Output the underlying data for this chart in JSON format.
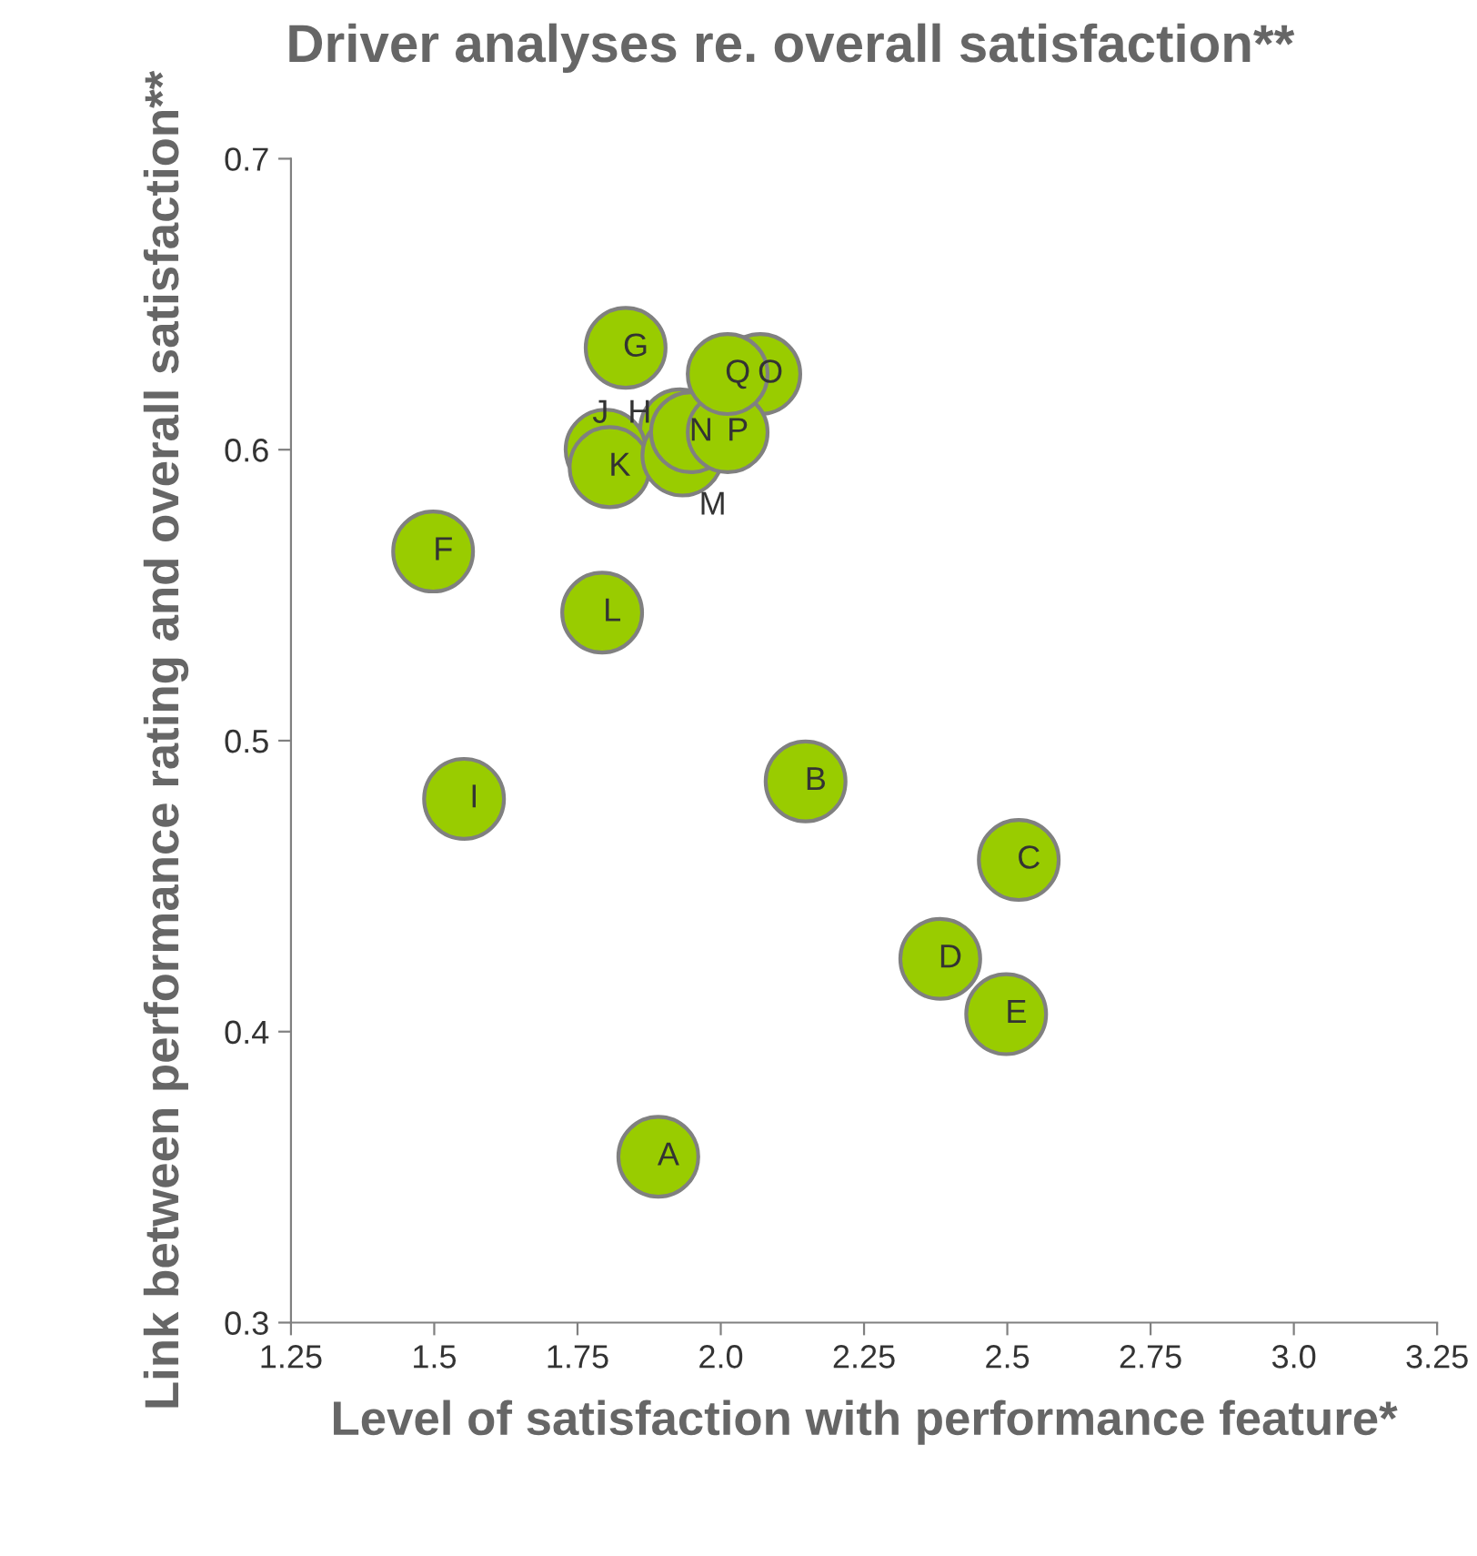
{
  "chart_data": {
    "type": "scatter",
    "title": "Driver analyses re. overall satisfaction**",
    "xlabel": "Level of satisfaction with performance feature*",
    "ylabel": "Link between performance rating and overall satisfaction**",
    "series": [
      {
        "color": "#99cc00",
        "x": [
          1.891,
          2.148,
          2.52,
          2.383,
          2.498,
          1.498,
          1.834,
          1.929,
          1.552,
          1.799,
          1.806,
          1.793,
          1.933,
          1.948,
          2.069,
          2.012,
          2.012
        ],
        "values": [
          0.357,
          0.486,
          0.459,
          0.425,
          0.406,
          0.565,
          0.635,
          0.607,
          0.48,
          0.6,
          0.594,
          0.544,
          0.598,
          0.606,
          0.626,
          0.606,
          0.626
        ],
        "value_labels": [
          "A",
          "B",
          "C",
          "D",
          "E",
          "F",
          "G",
          "H",
          "I",
          "J",
          "K",
          "L",
          "M",
          "N",
          "O",
          "P",
          "Q"
        ]
      }
    ],
    "marker": "circle",
    "grid": false,
    "legend": false,
    "xlim": [
      1.25,
      3.25
    ],
    "xticks": [
      1.25,
      1.5,
      1.75,
      {
        "value": 2,
        "label": "2.0"
      },
      2.25,
      2.5,
      2.75,
      {
        "value": 3,
        "label": "3.0"
      },
      3.25
    ],
    "ylim": [
      0.3,
      0.7
    ],
    "yticks": [
      0.3,
      0.4,
      0.5,
      0.6,
      0.7
    ]
  }
}
